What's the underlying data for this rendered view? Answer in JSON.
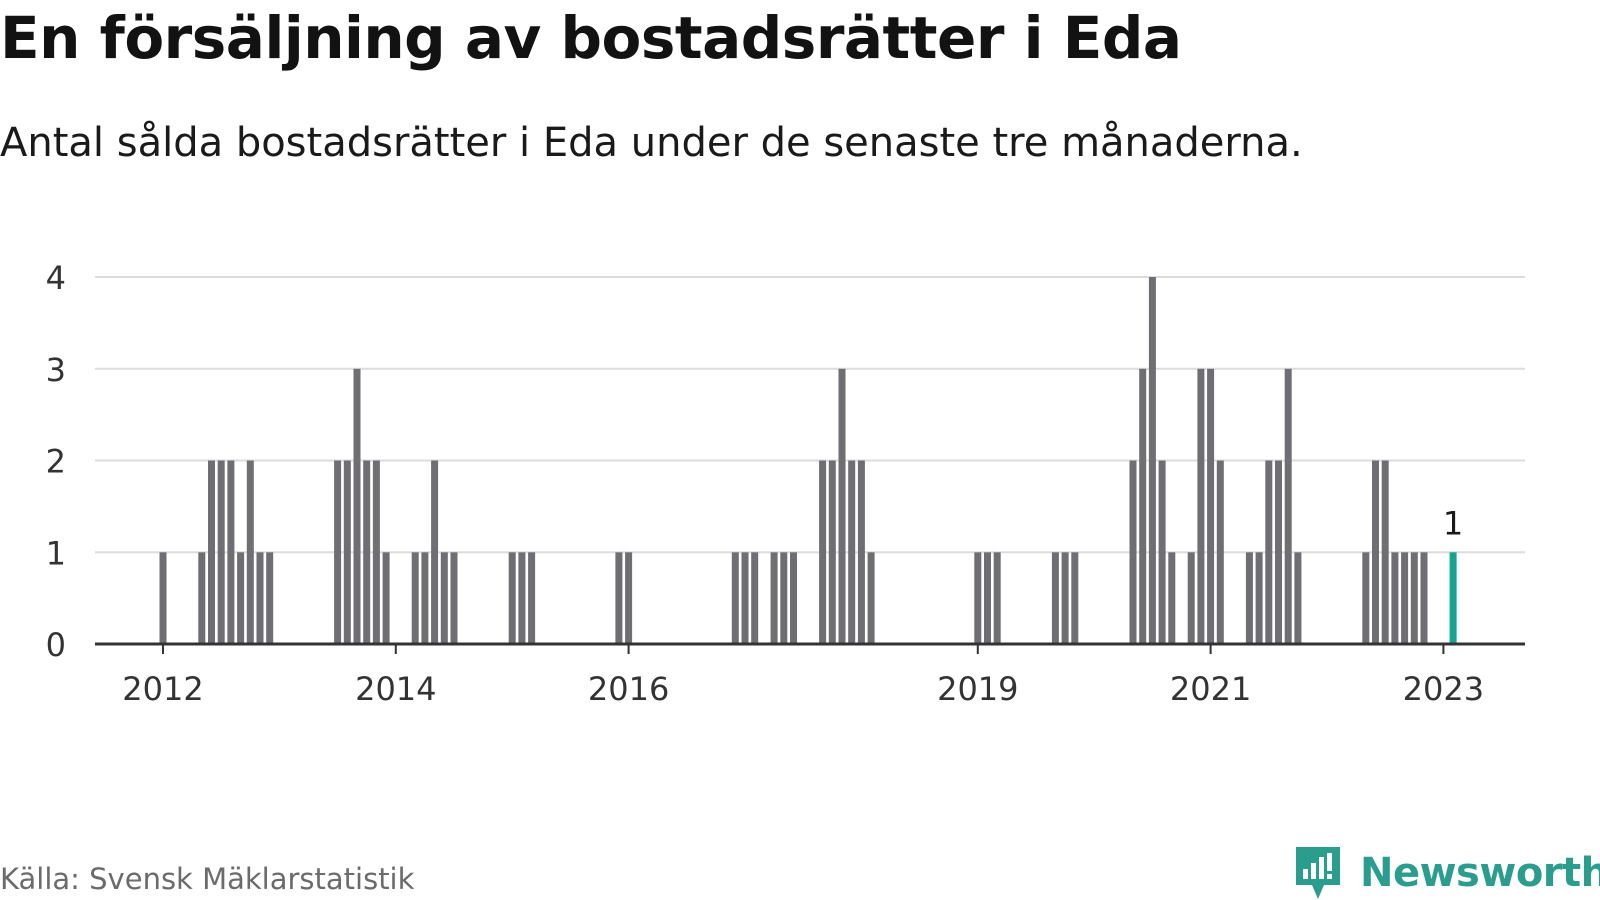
{
  "title": "En försäljning av bostadsrätter i Eda",
  "subtitle": "Antal sålda bostadsrätter i Eda under de senaste tre månaderna.",
  "source": "Källa: Svensk Mäklarstatistik",
  "brand": "Newsworthy",
  "colors": {
    "bar": "#6e6e73",
    "highlight": "#16a392",
    "grid": "#dcdcdc",
    "axis": "#333333",
    "brand": "#2a9d8f"
  },
  "chart_data": {
    "type": "bar",
    "title": "En försäljning av bostadsrätter i Eda",
    "subtitle": "Antal sålda bostadsrätter i Eda under de senaste tre månaderna.",
    "xlabel": "",
    "ylabel": "",
    "ylim": [
      0,
      4
    ],
    "yticks": [
      0,
      1,
      2,
      3,
      4
    ],
    "xtick_labels": [
      "2012",
      "2014",
      "2016",
      "2019",
      "2021",
      "2023"
    ],
    "grid": true,
    "legend": "none",
    "highlight_label": "1",
    "x": [
      "2012-01",
      "2012-05",
      "2012-06",
      "2012-07",
      "2012-08",
      "2012-09",
      "2012-10",
      "2012-11",
      "2012-12",
      "2013-07",
      "2013-08",
      "2013-09",
      "2013-10",
      "2013-11",
      "2013-12",
      "2014-01",
      "2014-03",
      "2014-04",
      "2014-05",
      "2014-06",
      "2014-07",
      "2015-01",
      "2015-02",
      "2015-03",
      "2015-12",
      "2016-01",
      "2016-12",
      "2017-01",
      "2017-02",
      "2017-04",
      "2017-05",
      "2017-06",
      "2017-09",
      "2017-10",
      "2017-11",
      "2017-12",
      "2018-01",
      "2018-02",
      "2019-01",
      "2019-02",
      "2019-03",
      "2019-09",
      "2019-10",
      "2019-11",
      "2020-05",
      "2020-06",
      "2020-07",
      "2020-08",
      "2020-09",
      "2020-11",
      "2020-12",
      "2021-01",
      "2021-02",
      "2021-05",
      "2021-06",
      "2021-07",
      "2021-08",
      "2021-09",
      "2021-10",
      "2022-05",
      "2022-06",
      "2022-07",
      "2022-08",
      "2022-09",
      "2022-10",
      "2022-11",
      "2023-02"
    ],
    "values": [
      1,
      1,
      2,
      2,
      2,
      1,
      2,
      1,
      1,
      2,
      2,
      3,
      2,
      2,
      1,
      0,
      1,
      1,
      2,
      1,
      1,
      1,
      1,
      1,
      1,
      1,
      1,
      1,
      1,
      1,
      1,
      1,
      2,
      2,
      3,
      2,
      2,
      1,
      1,
      1,
      1,
      1,
      1,
      1,
      2,
      3,
      4,
      2,
      1,
      1,
      3,
      3,
      2,
      1,
      1,
      2,
      2,
      3,
      1,
      1,
      2,
      2,
      1,
      1,
      1,
      1,
      1
    ],
    "highlight_index": 66
  }
}
